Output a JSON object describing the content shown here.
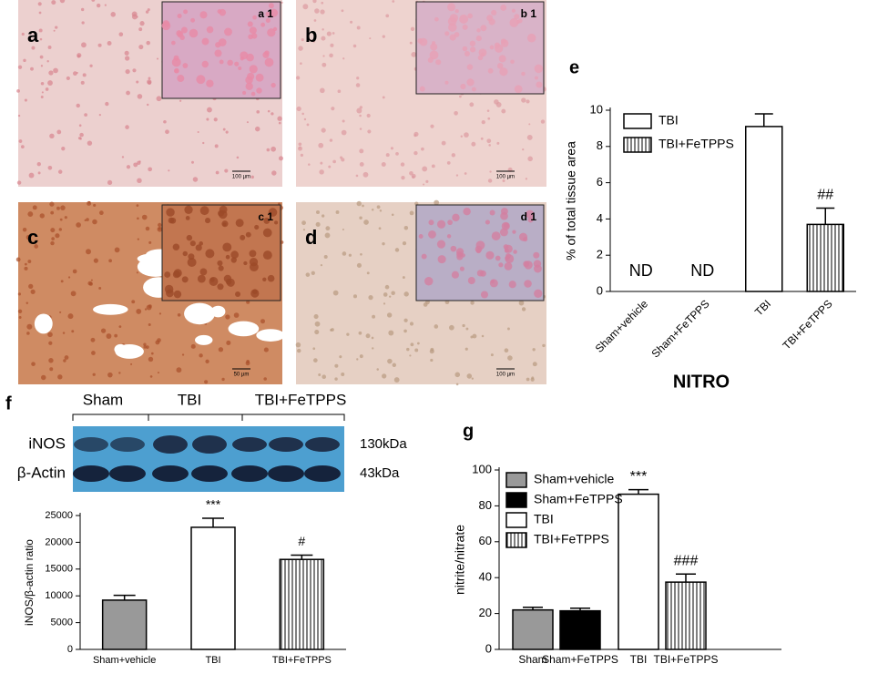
{
  "panels": [
    {
      "label": "a",
      "inset": "a 1",
      "scale": "100 µm"
    },
    {
      "label": "b",
      "inset": "b 1",
      "scale": "100 µm"
    },
    {
      "label": "c",
      "inset": "c 1",
      "scale": "50 µm"
    },
    {
      "label": "d",
      "inset": "d 1",
      "scale": "100 µm"
    }
  ],
  "blot": {
    "label": "f",
    "groups": [
      "Sham",
      "TBI",
      "TBI+FeTPPS"
    ],
    "rows": [
      {
        "name": "iNOS",
        "size": "130kDa"
      },
      {
        "name": "β-Actin",
        "size": "43kDa"
      }
    ]
  },
  "chart_data": [
    {
      "type": "bar",
      "label": "e",
      "ylabel": "% of total tissue area",
      "xlabel": "NITRO",
      "categories": [
        "Sham+vehicle",
        "Sham+FeTPPS",
        "TBI",
        "TBI+FeTPPS"
      ],
      "values": [
        null,
        null,
        9.1,
        3.7
      ],
      "errors": [
        null,
        null,
        0.7,
        0.9
      ],
      "value_labels": [
        "ND",
        "ND",
        null,
        null
      ],
      "annotations": [
        null,
        null,
        null,
        "##"
      ],
      "fills": [
        null,
        null,
        "white",
        "hatch"
      ],
      "legend": [
        {
          "name": "TBI",
          "fill": "white"
        },
        {
          "name": "TBI+FeTPPS",
          "fill": "hatch"
        }
      ],
      "ylim": [
        0,
        10
      ],
      "yticks": [
        0,
        2,
        4,
        6,
        8,
        10
      ]
    },
    {
      "type": "bar",
      "ylabel": "iNOS/β-actin ratio",
      "categories": [
        "Sham+vehicle",
        "TBI",
        "TBI+FeTPPS"
      ],
      "values": [
        9200,
        22800,
        16800
      ],
      "errors": [
        900,
        1700,
        800
      ],
      "annotations": [
        null,
        "***",
        "#"
      ],
      "fills": [
        "#999999",
        "white",
        "hatch"
      ],
      "ylim": [
        0,
        25000
      ],
      "yticks": [
        0,
        5000,
        10000,
        15000,
        20000,
        25000
      ]
    },
    {
      "type": "bar",
      "label": "g",
      "ylabel": "nitrite/nitrate",
      "categories": [
        "Sham",
        "Sham+FeTPPS",
        "TBI",
        "TBI+FeTPPS"
      ],
      "values": [
        22,
        21.5,
        86.5,
        37.5
      ],
      "errors": [
        1.5,
        1.5,
        2.5,
        4.5
      ],
      "annotations": [
        null,
        null,
        "***",
        "###"
      ],
      "fills": [
        "#999999",
        "#000000",
        "white",
        "hatch"
      ],
      "legend": [
        {
          "name": "Sham+vehicle",
          "fill": "#999999"
        },
        {
          "name": "Sham+FeTPPS",
          "fill": "#000000"
        },
        {
          "name": "TBI",
          "fill": "white"
        },
        {
          "name": "TBI+FeTPPS",
          "fill": "hatch"
        }
      ],
      "ylim": [
        0,
        100
      ],
      "yticks": [
        0,
        20,
        40,
        60,
        80,
        100
      ]
    }
  ]
}
